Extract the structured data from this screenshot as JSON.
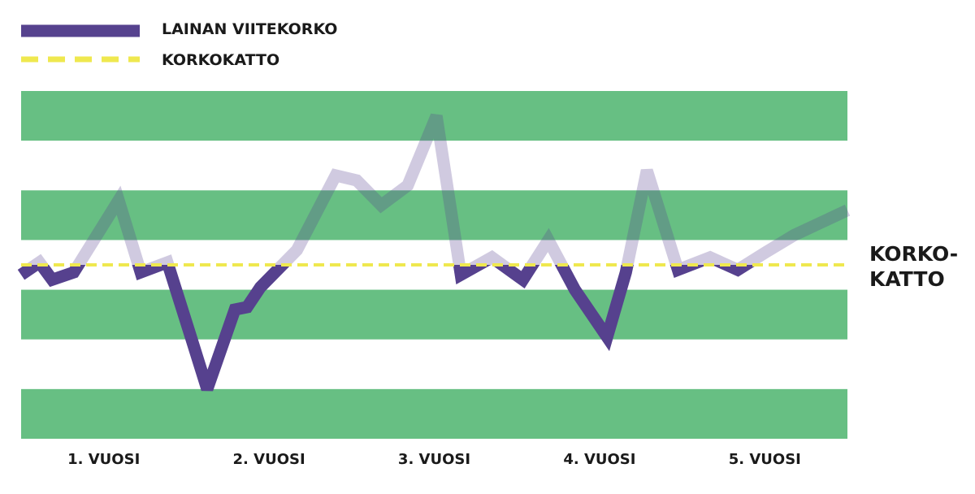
{
  "chart_data": {
    "type": "line",
    "legend": [
      {
        "label": "LAINAN VIITEKORKO",
        "color": "#56428e",
        "style": "solid"
      },
      {
        "label": "KORKOKATTO",
        "color": "#efe84f",
        "style": "dashed"
      }
    ],
    "categories": [
      "1. VUOSI",
      "2. VUOSI",
      "3. VUOSI",
      "4. VUOSI",
      "5. VUOSI"
    ],
    "cap_label_line1": "KORKO-",
    "cap_label_line2": "KATTO",
    "ylim": [
      0,
      7
    ],
    "cap_value": 3.5,
    "series": [
      {
        "name": "LAINAN VIITEKORKO",
        "x": [
          0,
          0.165,
          0.28,
          0.475,
          0.88,
          1.08,
          1.32,
          1.54,
          1.68,
          1.93,
          2.04,
          2.16,
          2.49,
          2.84,
          3.03,
          3.25,
          3.49,
          3.75,
          3.97,
          4.25,
          4.53,
          4.76,
          5.0,
          5.29,
          5.46,
          5.65,
          5.93,
          6.22,
          6.47,
          6.72,
          6.98,
          7.46
        ],
        "values": [
          3.3,
          3.55,
          3.2,
          3.35,
          4.8,
          3.35,
          3.55,
          2.0,
          1.0,
          2.6,
          2.65,
          3.05,
          3.8,
          5.3,
          5.2,
          4.7,
          5.1,
          6.5,
          3.3,
          3.65,
          3.2,
          4.0,
          3.0,
          2.05,
          3.35,
          5.4,
          3.4,
          3.65,
          3.4,
          3.75,
          4.1,
          4.6
        ]
      }
    ],
    "colors": {
      "band": "#67bf83",
      "line": "#56428e",
      "cap": "#efe84f"
    }
  }
}
